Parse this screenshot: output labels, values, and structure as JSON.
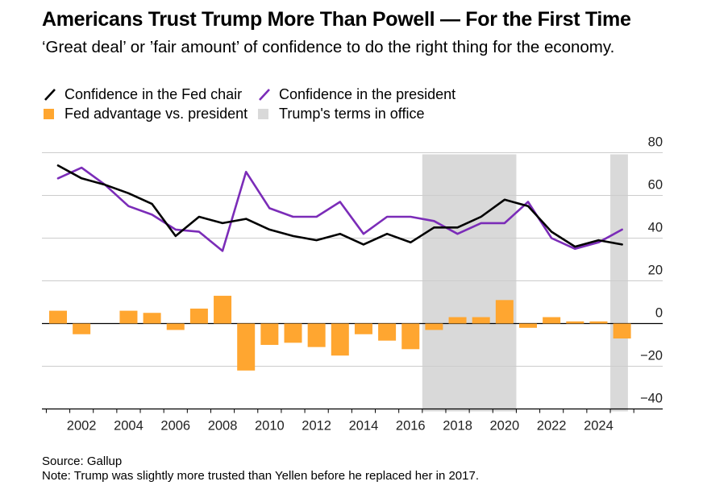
{
  "title": "Americans Trust Trump More Than Powell — For the First Time",
  "subtitle": "‘Great deal’ or ’fair amount’ of confidence to do the right thing for the economy.",
  "legend": {
    "fed_chair": "Confidence in the Fed chair",
    "president": "Confidence in the president",
    "advantage": "Fed advantage vs. president",
    "terms": "Trump's terms in office"
  },
  "footer": {
    "source": "Source: Gallup",
    "note": "Note: Trump was slightly more trusted than Yellen before he replaced her in 2017."
  },
  "colors": {
    "fed_chair": "#000000",
    "president": "#7b2cb8",
    "advantage": "#ffa630",
    "terms": "#d9d9d9",
    "grid": "#cccccc"
  },
  "chart_data": {
    "type": "line",
    "x": [
      2001,
      2002,
      2003,
      2004,
      2005,
      2006,
      2007,
      2008,
      2009,
      2010,
      2011,
      2012,
      2013,
      2014,
      2015,
      2016,
      2017,
      2018,
      2019,
      2020,
      2021,
      2022,
      2023,
      2024,
      2025
    ],
    "series": [
      {
        "name": "Confidence in the Fed chair",
        "type": "line",
        "values": [
          74,
          68,
          65,
          61,
          56,
          41,
          50,
          47,
          49,
          44,
          41,
          39,
          42,
          37,
          42,
          38,
          45,
          45,
          50,
          58,
          55,
          43,
          36,
          39,
          37
        ]
      },
      {
        "name": "Confidence in the president",
        "type": "line",
        "values": [
          68,
          73,
          65,
          55,
          51,
          44,
          43,
          34,
          71,
          54,
          50,
          50,
          57,
          42,
          50,
          50,
          48,
          42,
          47,
          47,
          57,
          40,
          35,
          38,
          44
        ]
      },
      {
        "name": "Fed advantage vs. president",
        "type": "bar",
        "values": [
          6,
          -5,
          0,
          6,
          5,
          -3,
          7,
          13,
          -22,
          -10,
          -9,
          -11,
          -15,
          -5,
          -8,
          -12,
          -3,
          3,
          3,
          11,
          -2,
          3,
          1,
          1,
          -7
        ]
      }
    ],
    "shaded_periods": [
      [
        2016.5,
        2020.5
      ],
      [
        2024.5,
        2025.25
      ]
    ],
    "y_ticks": [
      80,
      60,
      40,
      20,
      0,
      -20,
      -40
    ],
    "x_ticks": [
      2002,
      2004,
      2006,
      2008,
      2010,
      2012,
      2014,
      2016,
      2018,
      2020,
      2022,
      2024
    ],
    "ylim": [
      -40,
      80
    ],
    "grid": true,
    "y_axis_side": "right",
    "legend_position": "top-left"
  }
}
